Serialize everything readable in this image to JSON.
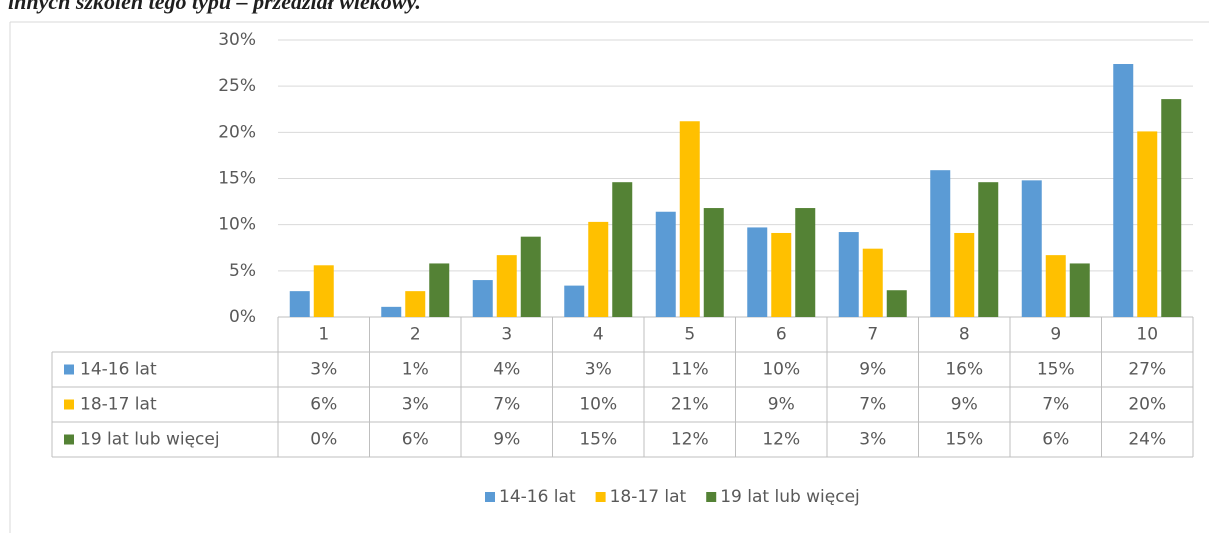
{
  "chart_data": {
    "type": "bar",
    "title": "innych szkoleń tego typu – przedział wiekowy.",
    "categories": [
      "1",
      "2",
      "3",
      "4",
      "5",
      "6",
      "7",
      "8",
      "9",
      "10"
    ],
    "series": [
      {
        "name": "14-16 lat",
        "color": "#5b9bd5",
        "values": [
          2.8,
          1.1,
          4.0,
          3.4,
          11.4,
          9.7,
          9.2,
          15.9,
          14.8,
          27.4
        ],
        "value_labels": [
          "3%",
          "1%",
          "4%",
          "3%",
          "11%",
          "10%",
          "9%",
          "16%",
          "15%",
          "27%"
        ]
      },
      {
        "name": "18-17 lat",
        "color": "#ffc000",
        "values": [
          5.6,
          2.8,
          6.7,
          10.3,
          21.2,
          9.1,
          7.4,
          9.1,
          6.7,
          20.1
        ],
        "value_labels": [
          "6%",
          "3%",
          "7%",
          "10%",
          "21%",
          "9%",
          "7%",
          "9%",
          "7%",
          "20%"
        ]
      },
      {
        "name": "19 lat lub więcej",
        "color": "#548235",
        "values": [
          0,
          5.8,
          8.7,
          14.6,
          11.8,
          11.8,
          2.9,
          14.6,
          5.8,
          23.6
        ],
        "value_labels": [
          "0%",
          "6%",
          "9%",
          "15%",
          "12%",
          "12%",
          "3%",
          "15%",
          "6%",
          "24%"
        ]
      }
    ],
    "ylim": [
      0,
      30
    ],
    "yticks": [
      {
        "value": 0,
        "label": "0%"
      },
      {
        "value": 5,
        "label": "5%"
      },
      {
        "value": 10,
        "label": "10%"
      },
      {
        "value": 15,
        "label": "15%"
      },
      {
        "value": 20,
        "label": "20%"
      },
      {
        "value": 25,
        "label": "25%"
      },
      {
        "value": 30,
        "label": "30%"
      }
    ],
    "grid": true,
    "legend": "bottom"
  }
}
